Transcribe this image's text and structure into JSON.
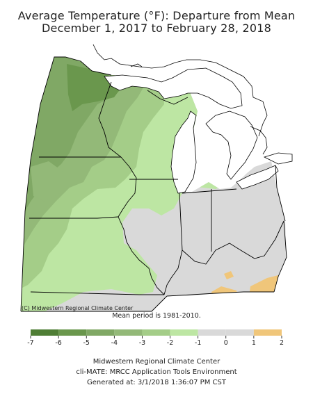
{
  "title_line1": "Average Temperature (°F): Departure from Mean",
  "title_line2": "December 1, 2017 to February 28, 2018",
  "credit": "(C) Midwestern Regional Climate Center",
  "mean_period": "Mean period is 1981-2010.",
  "legend": {
    "ticks": [
      "-7",
      "-6",
      "-5",
      "-4",
      "-3",
      "-2",
      "-1",
      "0",
      "1",
      "2"
    ],
    "colors": [
      "#4f7e35",
      "#6a974d",
      "#80a865",
      "#93b978",
      "#a4cd88",
      "#bde6a3",
      "#d9d9d9",
      "#d9d9d9",
      "#f0c67a"
    ]
  },
  "footer": {
    "line1": "Midwestern Regional Climate Center",
    "line2": "cli-MATE: MRCC Application Tools Environment",
    "line3": "Generated at: 3/1/2018 1:36:07 PM CST"
  },
  "map": {
    "region": "Midwest United States",
    "states": [
      "Minnesota",
      "Iowa",
      "Missouri",
      "Wisconsin",
      "Illinois",
      "Michigan",
      "Indiana",
      "Ohio",
      "Kentucky"
    ],
    "water_color": "#ffffff",
    "border_color": "#000000"
  }
}
